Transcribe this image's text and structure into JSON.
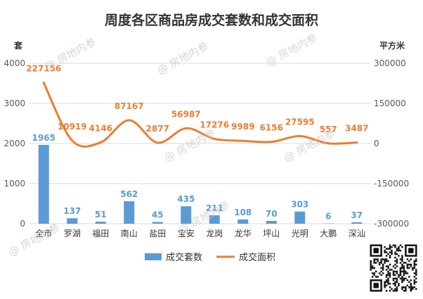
{
  "watermark_text": "@ 房地内参",
  "colors": {
    "bar": "#5b9bd5",
    "line": "#ed7d31",
    "grid": "#d9d9d9",
    "axis_text": "#595959"
  },
  "chart_data": {
    "type": "bar+line",
    "title": "周度各区商品房成交套数和成交面积",
    "categories": [
      "全市",
      "罗湖",
      "福田",
      "南山",
      "盐田",
      "宝安",
      "龙岗",
      "龙华",
      "坪山",
      "光明",
      "大鹏",
      "深汕"
    ],
    "left_axis": {
      "unit": "套",
      "ticks": [
        "0",
        "1000",
        "2000",
        "3000",
        "4000"
      ],
      "range": [
        0,
        4000
      ]
    },
    "right_axis": {
      "unit": "平方米",
      "ticks": [
        "-300000",
        "-150000",
        "0",
        "150000",
        "300000"
      ],
      "range": [
        -300000,
        300000
      ]
    },
    "series": [
      {
        "name": "成交套数",
        "type": "bar",
        "axis": "left",
        "values": [
          1965,
          137,
          51,
          562,
          45,
          435,
          211,
          108,
          70,
          303,
          6,
          37
        ],
        "labels": [
          "1965",
          "137",
          "51",
          "562",
          "45",
          "435",
          "211",
          "108",
          "70",
          "303",
          "6",
          "37"
        ]
      },
      {
        "name": "成交面积",
        "type": "line",
        "axis": "right",
        "smooth": true,
        "values": [
          227156,
          10919,
          4146,
          87167,
          2877,
          56987,
          17276,
          9989,
          6156,
          27595,
          557,
          3487
        ],
        "labels": [
          "227156",
          "10919",
          "4146",
          "87167",
          "2877",
          "56987",
          "17276",
          "9989",
          "6156",
          "27595",
          "557",
          "3487"
        ]
      }
    ],
    "legend_position": "bottom",
    "grid": true
  }
}
